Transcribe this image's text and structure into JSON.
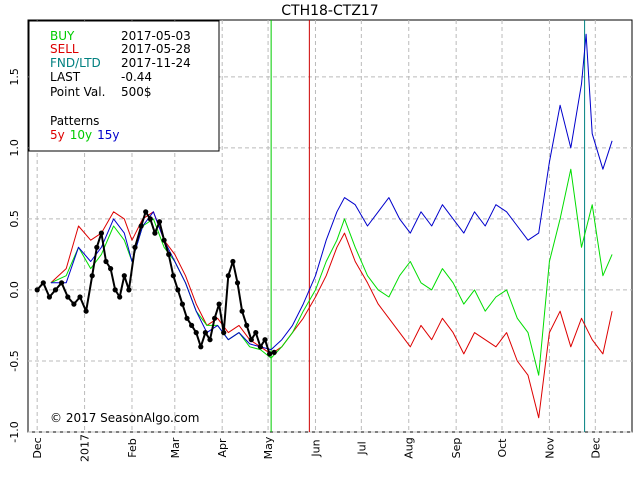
{
  "chart_data": {
    "type": "line",
    "title": "CTH18-CTZ17",
    "info": {
      "buy_label": "BUY",
      "buy_date": "2017-05-03",
      "sell_label": "SELL",
      "sell_date": "2017-05-28",
      "fnd_label": "FND/LTD",
      "fnd_date": "2017-11-24",
      "last_label": "LAST",
      "last_value": "-0.44",
      "point_label": "Point Val.",
      "point_value": "500$",
      "patterns_label": "Patterns",
      "pattern_5y": "5y",
      "pattern_10y": "10y",
      "pattern_15y": "15y"
    },
    "copyright": "© 2017 SeasonAlgo.com",
    "ylim": [
      -1.0,
      1.9
    ],
    "y_ticks": [
      -1.0,
      -0.5,
      0.0,
      0.5,
      1.0,
      1.5
    ],
    "y_tick_labels": [
      "-1.0",
      "-0.5",
      "0.0",
      "0.5",
      "1.0",
      "1.5"
    ],
    "xlim": [
      "2016-11-25",
      "2017-12-25"
    ],
    "x_ticks": [
      {
        "date": "2016-12-01",
        "label": "Dec"
      },
      {
        "date": "2017-01-01",
        "label": "2017"
      },
      {
        "date": "2017-02-01",
        "label": "Feb"
      },
      {
        "date": "2017-03-01",
        "label": "Mar"
      },
      {
        "date": "2017-04-01",
        "label": "Apr"
      },
      {
        "date": "2017-05-01",
        "label": "May"
      },
      {
        "date": "2017-06-01",
        "label": "Jun"
      },
      {
        "date": "2017-07-01",
        "label": "Jul"
      },
      {
        "date": "2017-08-01",
        "label": "Aug"
      },
      {
        "date": "2017-09-01",
        "label": "Sep"
      },
      {
        "date": "2017-10-01",
        "label": "Oct"
      },
      {
        "date": "2017-11-01",
        "label": "Nov"
      },
      {
        "date": "2017-12-01",
        "label": "Dec"
      }
    ],
    "grid": true,
    "vlines": [
      {
        "date": "2017-05-03",
        "color": "#00cc00"
      },
      {
        "date": "2017-05-28",
        "color": "#cc0000"
      },
      {
        "date": "2017-11-24",
        "color": "#008080"
      }
    ],
    "series": [
      {
        "name": "5y",
        "color": "#dd0000",
        "points": [
          [
            "2016-12-10",
            0.05
          ],
          [
            "2016-12-20",
            0.15
          ],
          [
            "2016-12-28",
            0.45
          ],
          [
            "2017-01-05",
            0.35
          ],
          [
            "2017-01-12",
            0.4
          ],
          [
            "2017-01-20",
            0.55
          ],
          [
            "2017-01-27",
            0.5
          ],
          [
            "2017-02-01",
            0.35
          ],
          [
            "2017-02-08",
            0.5
          ],
          [
            "2017-02-15",
            0.55
          ],
          [
            "2017-02-22",
            0.35
          ],
          [
            "2017-03-01",
            0.25
          ],
          [
            "2017-03-08",
            0.1
          ],
          [
            "2017-03-15",
            -0.1
          ],
          [
            "2017-03-22",
            -0.25
          ],
          [
            "2017-03-29",
            -0.2
          ],
          [
            "2017-04-05",
            -0.3
          ],
          [
            "2017-04-12",
            -0.25
          ],
          [
            "2017-04-19",
            -0.35
          ],
          [
            "2017-04-26",
            -0.4
          ],
          [
            "2017-05-03",
            -0.45
          ],
          [
            "2017-05-10",
            -0.4
          ],
          [
            "2017-05-17",
            -0.3
          ],
          [
            "2017-05-24",
            -0.2
          ],
          [
            "2017-06-01",
            -0.05
          ],
          [
            "2017-06-08",
            0.1
          ],
          [
            "2017-06-15",
            0.3
          ],
          [
            "2017-06-20",
            0.4
          ],
          [
            "2017-06-27",
            0.2
          ],
          [
            "2017-07-05",
            0.05
          ],
          [
            "2017-07-12",
            -0.1
          ],
          [
            "2017-07-19",
            -0.2
          ],
          [
            "2017-07-26",
            -0.3
          ],
          [
            "2017-08-02",
            -0.4
          ],
          [
            "2017-08-09",
            -0.25
          ],
          [
            "2017-08-16",
            -0.35
          ],
          [
            "2017-08-23",
            -0.2
          ],
          [
            "2017-08-30",
            -0.3
          ],
          [
            "2017-09-06",
            -0.45
          ],
          [
            "2017-09-13",
            -0.3
          ],
          [
            "2017-09-20",
            -0.35
          ],
          [
            "2017-09-27",
            -0.4
          ],
          [
            "2017-10-04",
            -0.3
          ],
          [
            "2017-10-11",
            -0.5
          ],
          [
            "2017-10-18",
            -0.6
          ],
          [
            "2017-10-25",
            -0.9
          ],
          [
            "2017-11-01",
            -0.3
          ],
          [
            "2017-11-08",
            -0.15
          ],
          [
            "2017-11-15",
            -0.4
          ],
          [
            "2017-11-22",
            -0.2
          ],
          [
            "2017-11-29",
            -0.35
          ],
          [
            "2017-12-06",
            -0.45
          ],
          [
            "2017-12-12",
            -0.15
          ]
        ]
      },
      {
        "name": "10y",
        "color": "#00dd00",
        "points": [
          [
            "2016-12-10",
            0.05
          ],
          [
            "2016-12-20",
            0.1
          ],
          [
            "2016-12-28",
            0.3
          ],
          [
            "2017-01-05",
            0.15
          ],
          [
            "2017-01-12",
            0.25
          ],
          [
            "2017-01-20",
            0.45
          ],
          [
            "2017-01-27",
            0.35
          ],
          [
            "2017-02-01",
            0.2
          ],
          [
            "2017-02-08",
            0.45
          ],
          [
            "2017-02-15",
            0.5
          ],
          [
            "2017-02-22",
            0.3
          ],
          [
            "2017-03-01",
            0.2
          ],
          [
            "2017-03-08",
            0.05
          ],
          [
            "2017-03-15",
            -0.15
          ],
          [
            "2017-03-22",
            -0.25
          ],
          [
            "2017-03-29",
            -0.25
          ],
          [
            "2017-04-05",
            -0.35
          ],
          [
            "2017-04-12",
            -0.3
          ],
          [
            "2017-04-19",
            -0.4
          ],
          [
            "2017-04-26",
            -0.42
          ],
          [
            "2017-05-03",
            -0.48
          ],
          [
            "2017-05-10",
            -0.4
          ],
          [
            "2017-05-17",
            -0.3
          ],
          [
            "2017-05-24",
            -0.15
          ],
          [
            "2017-06-01",
            0.0
          ],
          [
            "2017-06-08",
            0.2
          ],
          [
            "2017-06-15",
            0.35
          ],
          [
            "2017-06-20",
            0.5
          ],
          [
            "2017-06-27",
            0.3
          ],
          [
            "2017-07-05",
            0.1
          ],
          [
            "2017-07-12",
            0.0
          ],
          [
            "2017-07-19",
            -0.05
          ],
          [
            "2017-07-26",
            0.1
          ],
          [
            "2017-08-02",
            0.2
          ],
          [
            "2017-08-09",
            0.05
          ],
          [
            "2017-08-16",
            0.0
          ],
          [
            "2017-08-23",
            0.15
          ],
          [
            "2017-08-30",
            0.05
          ],
          [
            "2017-09-06",
            -0.1
          ],
          [
            "2017-09-13",
            0.0
          ],
          [
            "2017-09-20",
            -0.15
          ],
          [
            "2017-09-27",
            -0.05
          ],
          [
            "2017-10-04",
            0.0
          ],
          [
            "2017-10-11",
            -0.2
          ],
          [
            "2017-10-18",
            -0.3
          ],
          [
            "2017-10-25",
            -0.6
          ],
          [
            "2017-11-01",
            0.2
          ],
          [
            "2017-11-08",
            0.5
          ],
          [
            "2017-11-15",
            0.85
          ],
          [
            "2017-11-22",
            0.3
          ],
          [
            "2017-11-29",
            0.6
          ],
          [
            "2017-12-06",
            0.1
          ],
          [
            "2017-12-12",
            0.25
          ]
        ]
      },
      {
        "name": "15y",
        "color": "#0000cc",
        "points": [
          [
            "2016-12-10",
            0.05
          ],
          [
            "2016-12-20",
            0.05
          ],
          [
            "2016-12-28",
            0.3
          ],
          [
            "2017-01-05",
            0.2
          ],
          [
            "2017-01-12",
            0.3
          ],
          [
            "2017-01-20",
            0.5
          ],
          [
            "2017-01-27",
            0.4
          ],
          [
            "2017-02-01",
            0.2
          ],
          [
            "2017-02-08",
            0.45
          ],
          [
            "2017-02-15",
            0.55
          ],
          [
            "2017-02-22",
            0.35
          ],
          [
            "2017-03-01",
            0.2
          ],
          [
            "2017-03-08",
            0.05
          ],
          [
            "2017-03-15",
            -0.15
          ],
          [
            "2017-03-22",
            -0.3
          ],
          [
            "2017-03-29",
            -0.25
          ],
          [
            "2017-04-05",
            -0.35
          ],
          [
            "2017-04-12",
            -0.3
          ],
          [
            "2017-04-19",
            -0.38
          ],
          [
            "2017-04-26",
            -0.4
          ],
          [
            "2017-05-03",
            -0.42
          ],
          [
            "2017-05-10",
            -0.35
          ],
          [
            "2017-05-17",
            -0.25
          ],
          [
            "2017-05-24",
            -0.1
          ],
          [
            "2017-06-01",
            0.1
          ],
          [
            "2017-06-08",
            0.35
          ],
          [
            "2017-06-15",
            0.55
          ],
          [
            "2017-06-20",
            0.65
          ],
          [
            "2017-06-27",
            0.6
          ],
          [
            "2017-07-05",
            0.45
          ],
          [
            "2017-07-12",
            0.55
          ],
          [
            "2017-07-19",
            0.65
          ],
          [
            "2017-07-26",
            0.5
          ],
          [
            "2017-08-02",
            0.4
          ],
          [
            "2017-08-09",
            0.55
          ],
          [
            "2017-08-16",
            0.45
          ],
          [
            "2017-08-23",
            0.6
          ],
          [
            "2017-08-30",
            0.5
          ],
          [
            "2017-09-06",
            0.4
          ],
          [
            "2017-09-13",
            0.55
          ],
          [
            "2017-09-20",
            0.45
          ],
          [
            "2017-09-27",
            0.6
          ],
          [
            "2017-10-04",
            0.55
          ],
          [
            "2017-10-11",
            0.45
          ],
          [
            "2017-10-18",
            0.35
          ],
          [
            "2017-10-25",
            0.4
          ],
          [
            "2017-11-01",
            0.9
          ],
          [
            "2017-11-08",
            1.3
          ],
          [
            "2017-11-15",
            1.0
          ],
          [
            "2017-11-22",
            1.45
          ],
          [
            "2017-11-25",
            1.8
          ],
          [
            "2017-11-29",
            1.1
          ],
          [
            "2017-12-06",
            0.85
          ],
          [
            "2017-12-12",
            1.05
          ]
        ]
      },
      {
        "name": "",
        "color": "#000000",
        "markers": true,
        "points": [
          [
            "2016-12-01",
            0.0
          ],
          [
            "2016-12-05",
            0.05
          ],
          [
            "2016-12-09",
            -0.05
          ],
          [
            "2016-12-13",
            0.0
          ],
          [
            "2016-12-17",
            0.05
          ],
          [
            "2016-12-21",
            -0.05
          ],
          [
            "2016-12-25",
            -0.1
          ],
          [
            "2016-12-29",
            -0.05
          ],
          [
            "2017-01-02",
            -0.15
          ],
          [
            "2017-01-06",
            0.1
          ],
          [
            "2017-01-09",
            0.3
          ],
          [
            "2017-01-12",
            0.4
          ],
          [
            "2017-01-15",
            0.2
          ],
          [
            "2017-01-18",
            0.15
          ],
          [
            "2017-01-21",
            0.0
          ],
          [
            "2017-01-24",
            -0.05
          ],
          [
            "2017-01-27",
            0.1
          ],
          [
            "2017-01-30",
            0.0
          ],
          [
            "2017-02-03",
            0.3
          ],
          [
            "2017-02-07",
            0.45
          ],
          [
            "2017-02-10",
            0.55
          ],
          [
            "2017-02-13",
            0.5
          ],
          [
            "2017-02-16",
            0.4
          ],
          [
            "2017-02-19",
            0.48
          ],
          [
            "2017-02-22",
            0.35
          ],
          [
            "2017-02-25",
            0.25
          ],
          [
            "2017-02-28",
            0.1
          ],
          [
            "2017-03-03",
            0.0
          ],
          [
            "2017-03-06",
            -0.1
          ],
          [
            "2017-03-09",
            -0.2
          ],
          [
            "2017-03-12",
            -0.25
          ],
          [
            "2017-03-15",
            -0.3
          ],
          [
            "2017-03-18",
            -0.4
          ],
          [
            "2017-03-21",
            -0.3
          ],
          [
            "2017-03-24",
            -0.35
          ],
          [
            "2017-03-27",
            -0.2
          ],
          [
            "2017-03-30",
            -0.1
          ],
          [
            "2017-04-02",
            -0.3
          ],
          [
            "2017-04-05",
            0.1
          ],
          [
            "2017-04-08",
            0.2
          ],
          [
            "2017-04-11",
            0.05
          ],
          [
            "2017-04-14",
            -0.15
          ],
          [
            "2017-04-17",
            -0.25
          ],
          [
            "2017-04-20",
            -0.35
          ],
          [
            "2017-04-23",
            -0.3
          ],
          [
            "2017-04-26",
            -0.4
          ],
          [
            "2017-04-29",
            -0.35
          ],
          [
            "2017-05-02",
            -0.45
          ],
          [
            "2017-05-05",
            -0.44
          ]
        ]
      }
    ]
  }
}
